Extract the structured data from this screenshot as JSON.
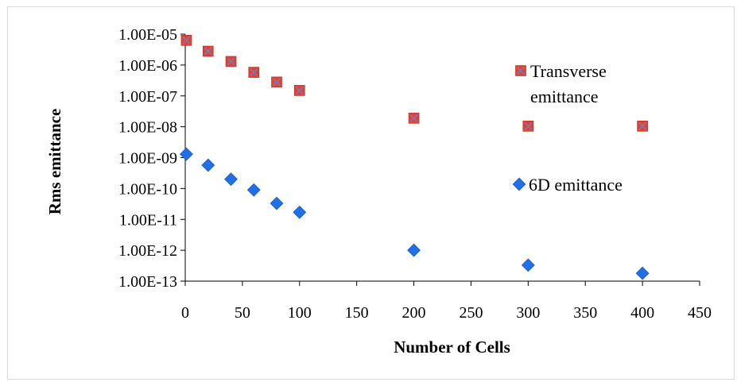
{
  "chart_data": {
    "type": "scatter",
    "xlabel": "Number of Cells",
    "ylabel": "Rms emittance",
    "xlim": [
      0,
      450
    ],
    "ylim": [
      1e-13,
      1e-05
    ],
    "yscale": "log",
    "x_ticks": [
      "0",
      "50",
      "100",
      "150",
      "200",
      "250",
      "300",
      "350",
      "400",
      "450"
    ],
    "x_tick_values": [
      0,
      50,
      100,
      150,
      200,
      250,
      300,
      350,
      400,
      450
    ],
    "y_ticks": [
      "1.00E-05",
      "1.00E-06",
      "1.00E-07",
      "1.00E-08",
      "1.00E-09",
      "1.00E-10",
      "1.00E-11",
      "1.00E-12",
      "1.00E-13"
    ],
    "y_tick_values": [
      1e-05,
      1e-06,
      1e-07,
      1e-08,
      1e-09,
      1e-10,
      1e-11,
      1e-12,
      1e-13
    ],
    "grid": false,
    "legend_position": "right",
    "series": [
      {
        "name": "Transverse emittance",
        "name_lines": [
          "Transverse",
          "emittance"
        ],
        "marker": "square-x",
        "color": "#e8402f",
        "x": [
          1,
          20,
          40,
          60,
          80,
          100,
          200,
          300,
          400
        ],
        "y": [
          6.3e-06,
          2.8e-06,
          1.3e-06,
          5.8e-07,
          2.8e-07,
          1.5e-07,
          1.9e-08,
          1.05e-08,
          1.05e-08
        ]
      },
      {
        "name": "6D emittance",
        "name_lines": [
          "6D emittance"
        ],
        "marker": "diamond",
        "color": "#1f6fe8",
        "x": [
          1,
          20,
          40,
          60,
          80,
          100,
          200,
          300,
          400
        ],
        "y": [
          1.3e-09,
          5.7e-10,
          2e-10,
          9e-11,
          3.3e-11,
          1.7e-11,
          1e-12,
          3.3e-13,
          1.8e-13
        ]
      }
    ]
  }
}
